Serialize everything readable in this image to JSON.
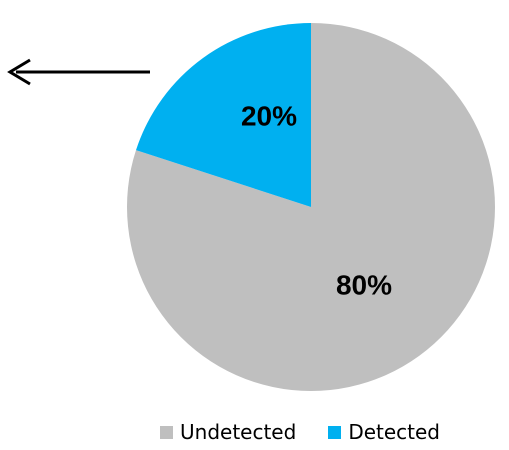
{
  "chart_data": {
    "type": "pie",
    "slices": [
      {
        "name": "Undetected",
        "value": 80,
        "label": "80%",
        "color": "#bfbfbf"
      },
      {
        "name": "Detected",
        "value": 20,
        "label": "20%",
        "color": "#00b0f0"
      }
    ],
    "start": "12 o'clock, counter-clockwise",
    "legend": {
      "position": "bottom-right",
      "items": [
        {
          "name": "Undetected",
          "color": "#bfbfbf"
        },
        {
          "name": "Detected",
          "color": "#00b0f0"
        }
      ]
    },
    "annotation": {
      "type": "arrow",
      "direction": "left",
      "color": "#000000"
    }
  }
}
